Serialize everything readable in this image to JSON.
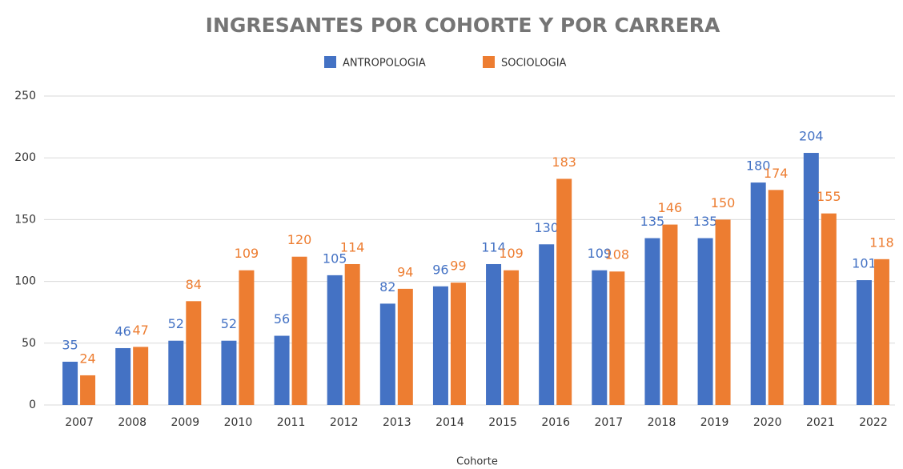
{
  "chart_data": {
    "type": "bar",
    "title": "INGRESANTES POR COHORTE Y POR CARRERA",
    "x_label": "Cohorte",
    "categories": [
      "2007",
      "2008",
      "2009",
      "2010",
      "2011",
      "2012",
      "2013",
      "2014",
      "2015",
      "2016",
      "2017",
      "2018",
      "2019",
      "2020",
      "2021",
      "2022"
    ],
    "series": [
      {
        "name": "ANTROPOLOGIA",
        "color": "#4472c4",
        "values": [
          35,
          46,
          52,
          52,
          56,
          105,
          82,
          96,
          114,
          130,
          109,
          135,
          135,
          180,
          204,
          101
        ]
      },
      {
        "name": "SOCIOLOGIA",
        "color": "#ed7d31",
        "values": [
          24,
          47,
          84,
          109,
          120,
          114,
          94,
          99,
          109,
          183,
          108,
          146,
          150,
          174,
          155,
          118
        ]
      }
    ],
    "ylim": [
      0,
      250
    ],
    "yticks": [
      0,
      50,
      100,
      150,
      200,
      250
    ],
    "grid": true,
    "legend": "top"
  }
}
